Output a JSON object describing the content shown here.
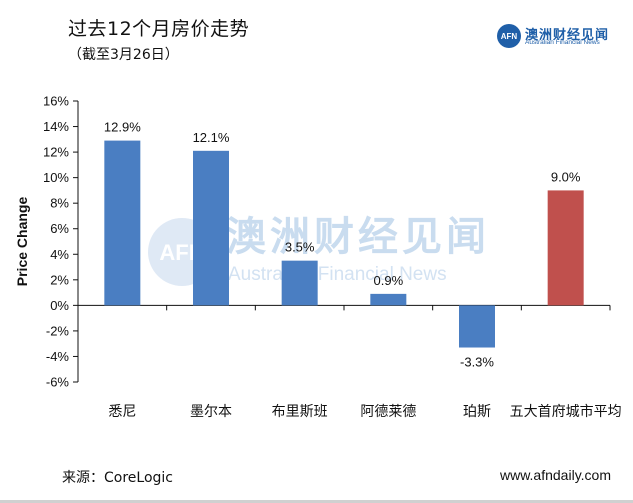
{
  "header": {
    "title": "过去12个月房价走势",
    "subtitle": "（截至3月26日）"
  },
  "logo": {
    "badge": "AFN",
    "name_cn": "澳洲财经见闻",
    "name_en": "Australian Financial News"
  },
  "watermark": {
    "badge": "AFN",
    "name_cn": "澳洲财经见闻",
    "name_en": "Australian Financial News"
  },
  "footer": {
    "source": "来源：CoreLogic",
    "website": "www.afndaily.com"
  },
  "chart_data": {
    "type": "bar",
    "title": "过去12个月房价走势",
    "ylabel": "Price Change",
    "xlabel": "",
    "ylim": [
      -6,
      16
    ],
    "ytick_step": 2,
    "yticks": [
      "16%",
      "14%",
      "12%",
      "10%",
      "8%",
      "6%",
      "4%",
      "2%",
      "0%",
      "-2%",
      "-4%",
      "-6%"
    ],
    "categories": [
      "悉尼",
      "墨尔本",
      "布里斯班",
      "阿德莱德",
      "珀斯",
      "五大首府城市平均"
    ],
    "values": [
      12.9,
      12.1,
      3.5,
      0.9,
      -3.3,
      9.0
    ],
    "data_labels": [
      "12.9%",
      "12.1%",
      "3.5%",
      "0.9%",
      "-3.3%",
      "9.0%"
    ],
    "colors": [
      "#4a7ec2",
      "#4a7ec2",
      "#4a7ec2",
      "#4a7ec2",
      "#4a7ec2",
      "#c0504d"
    ],
    "grid": false,
    "legend": "none"
  }
}
